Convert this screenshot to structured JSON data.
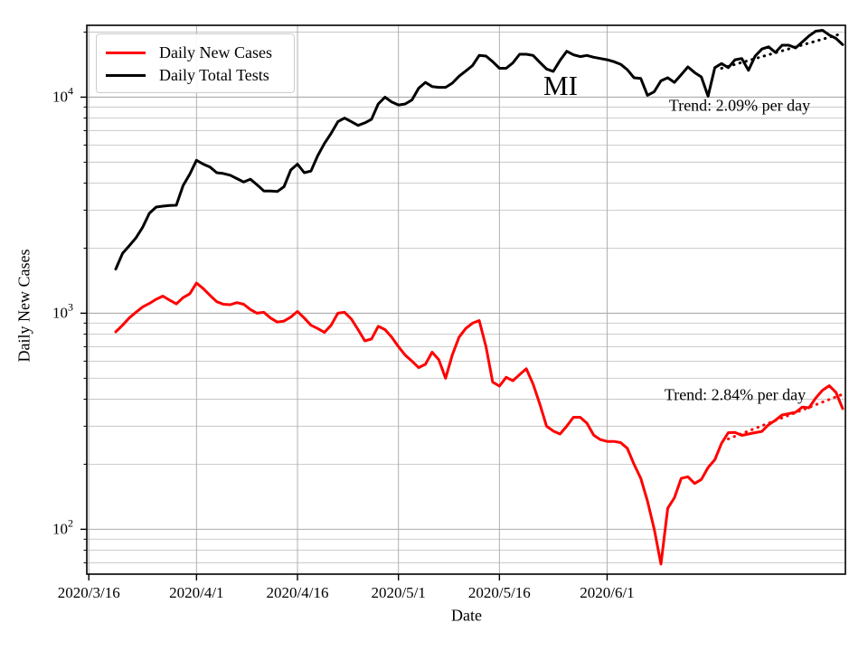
{
  "figure": {
    "state_label": "MI"
  },
  "legend": {
    "items": [
      {
        "label": "Daily New Cases",
        "color": "#ff0000"
      },
      {
        "label": "Daily Total Tests",
        "color": "#000000"
      }
    ]
  },
  "chart_data": {
    "type": "line",
    "title": "",
    "xlabel": "Date",
    "ylabel": "Daily New Cases",
    "yscale": "log",
    "grid": true,
    "legend_position": "upper left",
    "ylim": [
      62,
      21500
    ],
    "xlim_days": [
      -0.3,
      112.4
    ],
    "x_origin_date": "2020/3/16",
    "xticks": [
      {
        "day": 0,
        "label": "2020/3/16"
      },
      {
        "day": 16,
        "label": "2020/4/1"
      },
      {
        "day": 31,
        "label": "2020/4/16"
      },
      {
        "day": 46,
        "label": "2020/5/1"
      },
      {
        "day": 61,
        "label": "2020/5/16"
      },
      {
        "day": 77,
        "label": "2020/6/1"
      }
    ],
    "yticks": [
      {
        "value": 10000,
        "base": "10",
        "exponent": "4"
      },
      {
        "value": 1000,
        "base": "10",
        "exponent": "3"
      },
      {
        "value": 100,
        "base": "10",
        "exponent": "2"
      }
    ],
    "series": [
      {
        "name": "Daily New Cases",
        "color": "#ff0000",
        "start_day_offset": 4,
        "start_date": "2020/3/20",
        "end_date": "2020/7/6",
        "values": [
          820,
          880,
          950,
          1010,
          1070,
          1110,
          1160,
          1200,
          1150,
          1105,
          1180,
          1230,
          1380,
          1300,
          1210,
          1130,
          1100,
          1095,
          1120,
          1100,
          1040,
          1000,
          1010,
          950,
          910,
          920,
          960,
          1020,
          950,
          880,
          850,
          815,
          880,
          1000,
          1010,
          940,
          840,
          745,
          760,
          870,
          840,
          775,
          700,
          640,
          600,
          560,
          580,
          660,
          610,
          500,
          640,
          775,
          850,
          900,
          925,
          700,
          480,
          460,
          505,
          487,
          520,
          553,
          470,
          380,
          300,
          285,
          276,
          300,
          330,
          330,
          310,
          273,
          260,
          255,
          255,
          252,
          237,
          200,
          172,
          135,
          100,
          69,
          125,
          140,
          172,
          175,
          163,
          170,
          193,
          210,
          250,
          280,
          281,
          272,
          276,
          280,
          284,
          305,
          320,
          338,
          343,
          348,
          368,
          365,
          405,
          440,
          462,
          430,
          362
        ]
      },
      {
        "name": "Daily Total Tests",
        "color": "#000000",
        "start_day_offset": 4,
        "start_date": "2020/3/20",
        "end_date": "2020/7/6",
        "values": [
          1600,
          1890,
          2050,
          2230,
          2500,
          2900,
          3100,
          3130,
          3150,
          3160,
          3900,
          4400,
          5100,
          4900,
          4750,
          4470,
          4430,
          4350,
          4200,
          4050,
          4170,
          3930,
          3680,
          3680,
          3660,
          3850,
          4600,
          4900,
          4470,
          4550,
          5350,
          6100,
          6800,
          7700,
          8000,
          7700,
          7400,
          7600,
          7900,
          9300,
          10000,
          9500,
          9200,
          9300,
          9700,
          11000,
          11700,
          11200,
          11100,
          11100,
          11600,
          12500,
          13200,
          14000,
          15600,
          15500,
          14600,
          13600,
          13600,
          14400,
          15800,
          15800,
          15600,
          14500,
          13500,
          13150,
          14800,
          16300,
          15700,
          15400,
          15600,
          15300,
          15100,
          14900,
          14600,
          14200,
          13400,
          12300,
          12200,
          10200,
          10600,
          11900,
          12300,
          11700,
          12700,
          13800,
          13000,
          12400,
          10100,
          13700,
          14300,
          13700,
          14900,
          15100,
          13300,
          15500,
          16700,
          17100,
          16100,
          17400,
          17400,
          16900,
          18000,
          19200,
          20200,
          20400,
          19400,
          18700,
          17500
        ]
      }
    ],
    "trend_lines": [
      {
        "series": "Daily Total Tests",
        "color": "#000000",
        "label": "Trend: 2.09% per day",
        "pct_per_day": 2.09,
        "start_day_offset": 94,
        "start_value": 13600,
        "end_day_offset": 112
      },
      {
        "series": "Daily New Cases",
        "color": "#ff0000",
        "label": "Trend: 2.84% per day",
        "pct_per_day": 2.84,
        "start_day_offset": 95,
        "start_value": 262,
        "end_day_offset": 112
      }
    ]
  }
}
